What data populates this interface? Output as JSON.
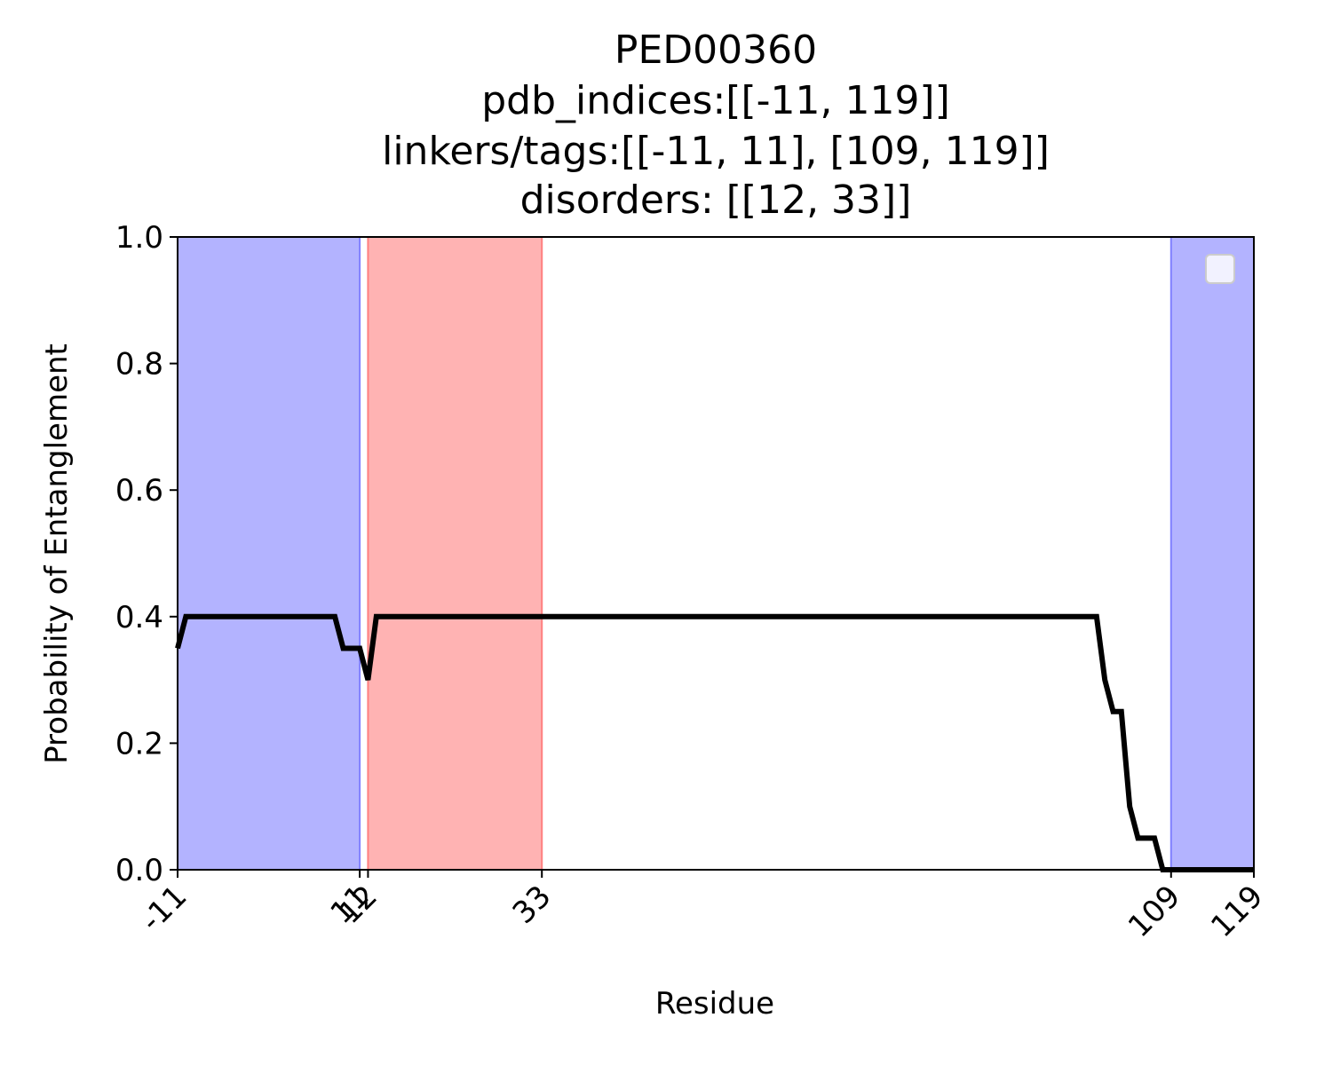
{
  "chart_data": {
    "type": "line",
    "title_lines": [
      "PED00360",
      "pdb_indices:[[-11, 119]]",
      "linkers/tags:[[-11, 11], [109, 119]]",
      "disorders: [[12, 33]]"
    ],
    "xlabel": "Residue",
    "ylabel": "Probability of Entanglement",
    "xlim": [
      -11,
      119
    ],
    "ylim": [
      0,
      1.0
    ],
    "x_ticks": [
      -11,
      11,
      12,
      33,
      109,
      119
    ],
    "x_tick_labels": [
      "-11",
      "11",
      "12",
      "33",
      "109",
      "119"
    ],
    "y_ticks": [
      0.0,
      0.2,
      0.4,
      0.6,
      0.8,
      1.0
    ],
    "y_tick_labels": [
      "0.0",
      "0.2",
      "0.4",
      "0.6",
      "0.8",
      "1.0"
    ],
    "shaded_regions": [
      {
        "type": "linker",
        "start": -11,
        "end": 11,
        "color": "#b3b3ff",
        "edge": "#8080ff"
      },
      {
        "type": "disorder",
        "start": 12,
        "end": 33,
        "color": "#ffb3b3",
        "edge": "#ff8080"
      },
      {
        "type": "linker",
        "start": 109,
        "end": 119,
        "color": "#b3b3ff",
        "edge": "#8080ff"
      }
    ],
    "series": [
      {
        "color": "#000000",
        "x": [
          -11,
          -10,
          -9,
          8,
          9,
          10,
          11,
          12,
          13,
          14,
          15,
          100,
          101,
          102,
          103,
          104,
          105,
          106,
          107,
          108,
          109,
          110,
          119
        ],
        "y": [
          0.35,
          0.4,
          0.4,
          0.4,
          0.35,
          0.35,
          0.35,
          0.3,
          0.4,
          0.4,
          0.4,
          0.4,
          0.3,
          0.25,
          0.25,
          0.1,
          0.05,
          0.05,
          0.05,
          0.0,
          0.0,
          0.0,
          0.0
        ]
      }
    ],
    "legend": {
      "placement": "top-right",
      "entries": []
    },
    "grid": false
  }
}
